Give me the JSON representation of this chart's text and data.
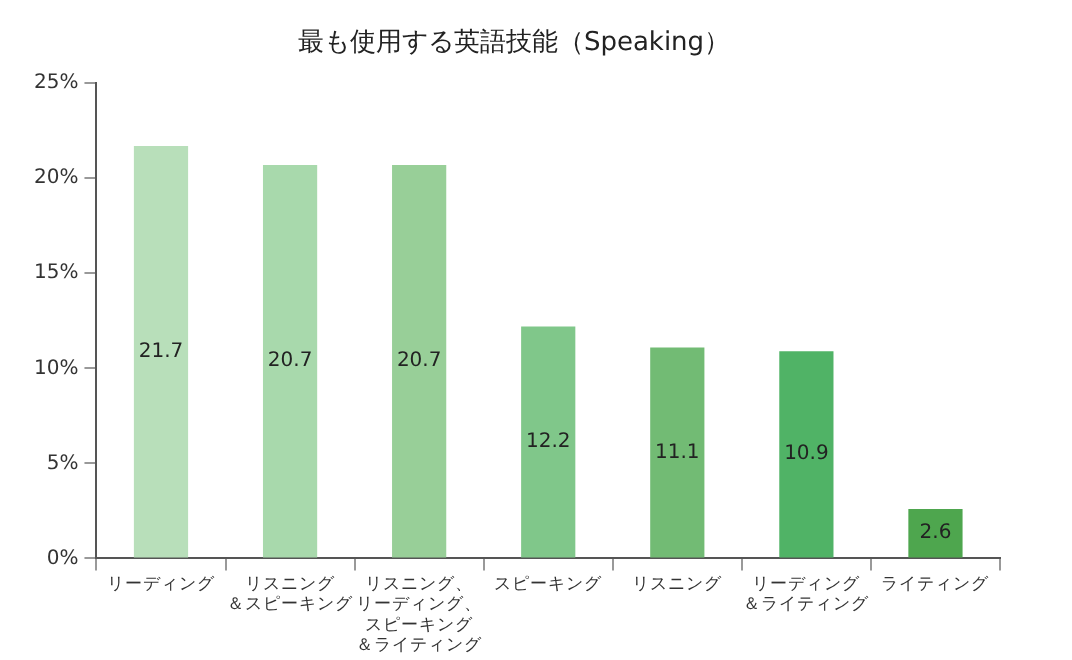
{
  "chart_data": {
    "type": "bar",
    "title": "最も使用する英語技能（Speaking）",
    "categories": [
      "リーディング",
      "リスニング＆スピーキング",
      "リスニング、リーディング、スピーキング＆ライティング",
      "スピーキング",
      "リスニング",
      "リーディング＆ライティング",
      "ライティング"
    ],
    "values": [
      21.7,
      20.7,
      20.7,
      12.2,
      11.1,
      10.9,
      2.6
    ],
    "colors": [
      "#b8dfba",
      "#a8d9ac",
      "#98cf98",
      "#80c78a",
      "#72bb74",
      "#50b366",
      "#4ea64e"
    ],
    "ylim": [
      0,
      25
    ],
    "yticks": [
      {
        "value": 0,
        "label": "0%"
      },
      {
        "value": 5,
        "label": "5%"
      },
      {
        "value": 10,
        "label": "10%"
      },
      {
        "value": 15,
        "label": "15%"
      },
      {
        "value": 20,
        "label": "20%"
      },
      {
        "value": 25,
        "label": "25%"
      }
    ],
    "data_labels": true,
    "grid": false,
    "legend": false
  }
}
